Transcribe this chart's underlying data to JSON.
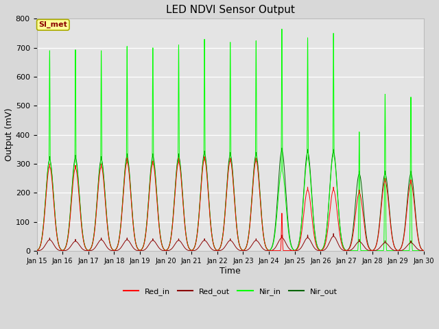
{
  "title": "LED NDVI Sensor Output",
  "xlabel": "Time",
  "ylabel": "Output (mV)",
  "ylim": [
    0,
    800
  ],
  "yticks": [
    0,
    100,
    200,
    300,
    400,
    500,
    600,
    700,
    800
  ],
  "xtick_labels": [
    "Jan 15",
    "Jan 16",
    "Jan 17",
    "Jan 18",
    "Jan 19",
    "Jan 20",
    "Jan 21",
    "Jan 22",
    "Jan 23",
    "Jan 24",
    "Jan 25",
    "Jan 26",
    "Jan 27",
    "Jan 28",
    "Jan 29",
    "Jan 30"
  ],
  "background_color": "#d8d8d8",
  "plot_bg_color": "#e4e4e4",
  "grid_color": "#ffffff",
  "colors": {
    "Red_in": "#ff0000",
    "Red_out": "#8b0000",
    "Nir_in": "#00ff00",
    "Nir_out": "#006400"
  },
  "annotation_text": "SI_met",
  "annotation_bg": "#ffff99",
  "annotation_border": "#aaaa00",
  "days": 15,
  "nir_in_peaks": [
    690,
    693,
    690,
    705,
    700,
    710,
    730,
    720,
    725,
    765,
    735,
    750,
    410,
    540,
    530
  ],
  "nir_out_peaks": [
    325,
    330,
    325,
    335,
    335,
    335,
    345,
    340,
    340,
    355,
    350,
    350,
    275,
    275,
    275
  ],
  "red_in_peaks": [
    300,
    295,
    300,
    320,
    310,
    320,
    325,
    320,
    320,
    130,
    220,
    220,
    210,
    250,
    245
  ],
  "red_out_peaks": [
    45,
    40,
    45,
    45,
    42,
    42,
    42,
    42,
    42,
    55,
    55,
    60,
    40,
    35,
    35
  ],
  "nir_in_broad": [
    310,
    310,
    305,
    315,
    315,
    315,
    325,
    315,
    315,
    280,
    320,
    330,
    0,
    0,
    0
  ],
  "nir_out_broad": [
    315,
    320,
    315,
    325,
    325,
    325,
    335,
    330,
    330,
    345,
    340,
    340,
    265,
    265,
    265
  ],
  "red_in_broad": [
    290,
    285,
    290,
    305,
    300,
    305,
    315,
    310,
    310,
    0,
    210,
    210,
    200,
    240,
    235
  ],
  "red_out_broad": [
    38,
    33,
    38,
    38,
    36,
    36,
    36,
    36,
    36,
    45,
    45,
    50,
    32,
    28,
    28
  ]
}
